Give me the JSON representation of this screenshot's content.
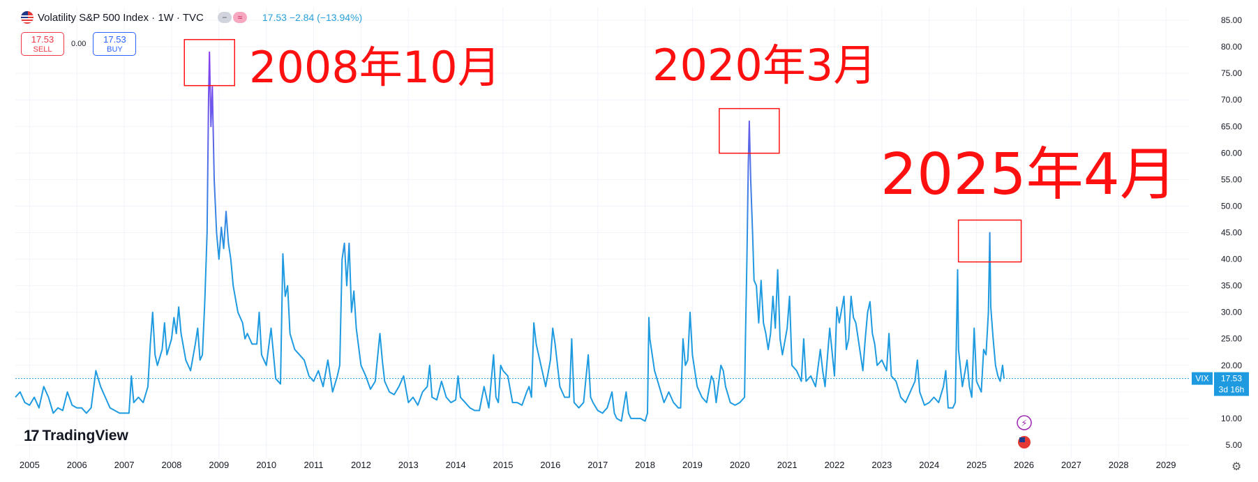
{
  "header": {
    "title": "Volatility S&P 500 Index · 1W · TVC",
    "price": "17.53",
    "change": "−2.84 (−13.94%)"
  },
  "trade": {
    "sell_price": "17.53",
    "sell_label": "SELL",
    "spread": "0.00",
    "buy_price": "17.53",
    "buy_label": "BUY"
  },
  "logo_text": "TradingView",
  "price_tag": {
    "symbol": "VIX",
    "value": "17.53",
    "countdown": "3d 16h"
  },
  "annotations": [
    {
      "text": "2008年10月",
      "date": 2008.8,
      "value": 79
    },
    {
      "text": "2020年3月",
      "date": 2020.2,
      "value": 66
    },
    {
      "text": "2025年4月",
      "date": 2025.28,
      "value": 45
    }
  ],
  "colors": {
    "line_low": "#1e9be0",
    "line_high": "#8b3cf0",
    "annotation": "#ff1010",
    "price_tag": "#1e9be0"
  },
  "chart_data": {
    "type": "line",
    "title": "Volatility S&P 500 Index · 1W · TVC",
    "series": [
      {
        "name": "VIX",
        "points": [
          [
            2004.7,
            14
          ],
          [
            2004.8,
            15
          ],
          [
            2004.9,
            13
          ],
          [
            2005.0,
            12.5
          ],
          [
            2005.1,
            14
          ],
          [
            2005.2,
            12
          ],
          [
            2005.3,
            16
          ],
          [
            2005.4,
            14
          ],
          [
            2005.5,
            11
          ],
          [
            2005.6,
            12
          ],
          [
            2005.7,
            11.5
          ],
          [
            2005.8,
            15
          ],
          [
            2005.9,
            12.5
          ],
          [
            2006.0,
            12
          ],
          [
            2006.1,
            12
          ],
          [
            2006.2,
            11
          ],
          [
            2006.3,
            12
          ],
          [
            2006.4,
            19
          ],
          [
            2006.5,
            16
          ],
          [
            2006.6,
            14
          ],
          [
            2006.7,
            12
          ],
          [
            2006.8,
            11.5
          ],
          [
            2006.9,
            11
          ],
          [
            2007.0,
            11
          ],
          [
            2007.1,
            11
          ],
          [
            2007.15,
            18
          ],
          [
            2007.2,
            13
          ],
          [
            2007.3,
            14
          ],
          [
            2007.4,
            13
          ],
          [
            2007.5,
            16
          ],
          [
            2007.55,
            24
          ],
          [
            2007.6,
            30
          ],
          [
            2007.65,
            22
          ],
          [
            2007.7,
            20
          ],
          [
            2007.8,
            23
          ],
          [
            2007.85,
            28
          ],
          [
            2007.9,
            22
          ],
          [
            2008.0,
            25
          ],
          [
            2008.05,
            29
          ],
          [
            2008.1,
            26
          ],
          [
            2008.15,
            31
          ],
          [
            2008.2,
            26
          ],
          [
            2008.3,
            21
          ],
          [
            2008.4,
            19
          ],
          [
            2008.5,
            24
          ],
          [
            2008.55,
            27
          ],
          [
            2008.6,
            21
          ],
          [
            2008.65,
            22
          ],
          [
            2008.7,
            32
          ],
          [
            2008.75,
            45
          ],
          [
            2008.78,
            70
          ],
          [
            2008.8,
            79
          ],
          [
            2008.83,
            65
          ],
          [
            2008.86,
            72.5
          ],
          [
            2008.9,
            55
          ],
          [
            2008.95,
            45
          ],
          [
            2009.0,
            40
          ],
          [
            2009.05,
            46
          ],
          [
            2009.1,
            42
          ],
          [
            2009.15,
            49
          ],
          [
            2009.2,
            43
          ],
          [
            2009.25,
            40
          ],
          [
            2009.3,
            35
          ],
          [
            2009.4,
            30
          ],
          [
            2009.5,
            28
          ],
          [
            2009.55,
            25
          ],
          [
            2009.6,
            26
          ],
          [
            2009.7,
            24
          ],
          [
            2009.8,
            24
          ],
          [
            2009.85,
            30
          ],
          [
            2009.9,
            22
          ],
          [
            2010.0,
            20
          ],
          [
            2010.1,
            27
          ],
          [
            2010.2,
            17.5
          ],
          [
            2010.3,
            16.5
          ],
          [
            2010.35,
            41
          ],
          [
            2010.4,
            33
          ],
          [
            2010.45,
            35
          ],
          [
            2010.5,
            26
          ],
          [
            2010.6,
            23
          ],
          [
            2010.7,
            22
          ],
          [
            2010.8,
            21
          ],
          [
            2010.9,
            18
          ],
          [
            2011.0,
            17
          ],
          [
            2011.1,
            19
          ],
          [
            2011.2,
            16
          ],
          [
            2011.3,
            21
          ],
          [
            2011.4,
            15
          ],
          [
            2011.5,
            18
          ],
          [
            2011.55,
            20
          ],
          [
            2011.6,
            40
          ],
          [
            2011.65,
            43
          ],
          [
            2011.7,
            35
          ],
          [
            2011.75,
            43
          ],
          [
            2011.8,
            30
          ],
          [
            2011.85,
            34
          ],
          [
            2011.9,
            27
          ],
          [
            2012.0,
            20
          ],
          [
            2012.1,
            18
          ],
          [
            2012.2,
            15.5
          ],
          [
            2012.3,
            17
          ],
          [
            2012.4,
            26
          ],
          [
            2012.45,
            21
          ],
          [
            2012.5,
            17
          ],
          [
            2012.6,
            15
          ],
          [
            2012.7,
            14.5
          ],
          [
            2012.8,
            16
          ],
          [
            2012.9,
            18
          ],
          [
            2013.0,
            13
          ],
          [
            2013.1,
            14
          ],
          [
            2013.2,
            12.5
          ],
          [
            2013.3,
            15
          ],
          [
            2013.4,
            16
          ],
          [
            2013.45,
            20
          ],
          [
            2013.5,
            14
          ],
          [
            2013.6,
            13.5
          ],
          [
            2013.7,
            17
          ],
          [
            2013.8,
            14
          ],
          [
            2013.9,
            13
          ],
          [
            2014.0,
            13.5
          ],
          [
            2014.05,
            18
          ],
          [
            2014.1,
            14
          ],
          [
            2014.2,
            13
          ],
          [
            2014.3,
            12
          ],
          [
            2014.4,
            11.5
          ],
          [
            2014.5,
            11.5
          ],
          [
            2014.6,
            16
          ],
          [
            2014.7,
            12
          ],
          [
            2014.8,
            22
          ],
          [
            2014.85,
            14
          ],
          [
            2014.9,
            13
          ],
          [
            2014.95,
            20
          ],
          [
            2015.0,
            19
          ],
          [
            2015.1,
            18
          ],
          [
            2015.2,
            13
          ],
          [
            2015.3,
            13
          ],
          [
            2015.4,
            12.5
          ],
          [
            2015.5,
            15
          ],
          [
            2015.55,
            16
          ],
          [
            2015.6,
            14
          ],
          [
            2015.65,
            28
          ],
          [
            2015.7,
            24
          ],
          [
            2015.8,
            20
          ],
          [
            2015.9,
            16
          ],
          [
            2016.0,
            21
          ],
          [
            2016.05,
            27
          ],
          [
            2016.1,
            24
          ],
          [
            2016.2,
            16
          ],
          [
            2016.3,
            14
          ],
          [
            2016.4,
            14
          ],
          [
            2016.45,
            25
          ],
          [
            2016.5,
            13
          ],
          [
            2016.6,
            12
          ],
          [
            2016.7,
            13
          ],
          [
            2016.8,
            22
          ],
          [
            2016.85,
            14
          ],
          [
            2016.9,
            13
          ],
          [
            2017.0,
            11.5
          ],
          [
            2017.1,
            11
          ],
          [
            2017.2,
            12
          ],
          [
            2017.3,
            15
          ],
          [
            2017.35,
            11
          ],
          [
            2017.4,
            10
          ],
          [
            2017.5,
            9.5
          ],
          [
            2017.6,
            15
          ],
          [
            2017.65,
            11
          ],
          [
            2017.7,
            10
          ],
          [
            2017.8,
            10
          ],
          [
            2017.9,
            10
          ],
          [
            2018.0,
            9.5
          ],
          [
            2018.05,
            11
          ],
          [
            2018.08,
            29
          ],
          [
            2018.1,
            25
          ],
          [
            2018.2,
            19
          ],
          [
            2018.3,
            16
          ],
          [
            2018.4,
            13
          ],
          [
            2018.5,
            15
          ],
          [
            2018.6,
            13
          ],
          [
            2018.7,
            12
          ],
          [
            2018.75,
            12
          ],
          [
            2018.8,
            25
          ],
          [
            2018.85,
            20
          ],
          [
            2018.9,
            21
          ],
          [
            2018.95,
            30
          ],
          [
            2019.0,
            22
          ],
          [
            2019.1,
            16
          ],
          [
            2019.2,
            14
          ],
          [
            2019.3,
            13
          ],
          [
            2019.4,
            18
          ],
          [
            2019.45,
            17
          ],
          [
            2019.5,
            13
          ],
          [
            2019.6,
            20
          ],
          [
            2019.65,
            19
          ],
          [
            2019.7,
            16
          ],
          [
            2019.8,
            13
          ],
          [
            2019.9,
            12.5
          ],
          [
            2020.0,
            13
          ],
          [
            2020.1,
            14
          ],
          [
            2020.12,
            25
          ],
          [
            2020.15,
            40
          ],
          [
            2020.18,
            58
          ],
          [
            2020.2,
            66
          ],
          [
            2020.23,
            55
          ],
          [
            2020.27,
            45
          ],
          [
            2020.3,
            36
          ],
          [
            2020.35,
            35
          ],
          [
            2020.4,
            28
          ],
          [
            2020.45,
            36
          ],
          [
            2020.5,
            28
          ],
          [
            2020.55,
            26
          ],
          [
            2020.6,
            23
          ],
          [
            2020.65,
            26
          ],
          [
            2020.7,
            33
          ],
          [
            2020.75,
            27
          ],
          [
            2020.8,
            38
          ],
          [
            2020.85,
            25
          ],
          [
            2020.9,
            22
          ],
          [
            2021.0,
            27
          ],
          [
            2021.05,
            33
          ],
          [
            2021.1,
            20
          ],
          [
            2021.2,
            19
          ],
          [
            2021.3,
            17
          ],
          [
            2021.35,
            25
          ],
          [
            2021.4,
            17
          ],
          [
            2021.5,
            18
          ],
          [
            2021.6,
            16
          ],
          [
            2021.7,
            23
          ],
          [
            2021.75,
            19
          ],
          [
            2021.8,
            16
          ],
          [
            2021.9,
            27
          ],
          [
            2022.0,
            18
          ],
          [
            2022.05,
            31
          ],
          [
            2022.1,
            28
          ],
          [
            2022.2,
            33
          ],
          [
            2022.25,
            23
          ],
          [
            2022.3,
            25
          ],
          [
            2022.35,
            33
          ],
          [
            2022.4,
            29
          ],
          [
            2022.45,
            28
          ],
          [
            2022.5,
            25
          ],
          [
            2022.6,
            19
          ],
          [
            2022.65,
            25
          ],
          [
            2022.7,
            30
          ],
          [
            2022.75,
            32
          ],
          [
            2022.8,
            26
          ],
          [
            2022.85,
            24
          ],
          [
            2022.9,
            20
          ],
          [
            2023.0,
            21
          ],
          [
            2023.1,
            19
          ],
          [
            2023.15,
            26
          ],
          [
            2023.2,
            18
          ],
          [
            2023.3,
            17
          ],
          [
            2023.4,
            14
          ],
          [
            2023.5,
            13
          ],
          [
            2023.6,
            15
          ],
          [
            2023.7,
            17
          ],
          [
            2023.75,
            21
          ],
          [
            2023.8,
            15
          ],
          [
            2023.9,
            12.5
          ],
          [
            2024.0,
            13
          ],
          [
            2024.1,
            14
          ],
          [
            2024.2,
            13
          ],
          [
            2024.3,
            16
          ],
          [
            2024.35,
            19
          ],
          [
            2024.4,
            12
          ],
          [
            2024.5,
            12
          ],
          [
            2024.55,
            13
          ],
          [
            2024.6,
            38
          ],
          [
            2024.62,
            23
          ],
          [
            2024.7,
            16
          ],
          [
            2024.8,
            21
          ],
          [
            2024.85,
            16
          ],
          [
            2024.9,
            14
          ],
          [
            2024.95,
            27
          ],
          [
            2025.0,
            17
          ],
          [
            2025.1,
            15
          ],
          [
            2025.15,
            23
          ],
          [
            2025.2,
            22
          ],
          [
            2025.25,
            30
          ],
          [
            2025.28,
            45
          ],
          [
            2025.3,
            31
          ],
          [
            2025.35,
            25
          ],
          [
            2025.4,
            20
          ],
          [
            2025.45,
            18
          ],
          [
            2025.5,
            17
          ],
          [
            2025.55,
            20
          ],
          [
            2025.58,
            17.53
          ]
        ]
      }
    ],
    "xlim": [
      2004.7,
      2029.5
    ],
    "x_ticks": [
      "2005",
      "2006",
      "2007",
      "2008",
      "2009",
      "2010",
      "2011",
      "2012",
      "2013",
      "2014",
      "2015",
      "2016",
      "2017",
      "2018",
      "2019",
      "2020",
      "2021",
      "2022",
      "2023",
      "2024",
      "2025",
      "2026",
      "2027",
      "2028",
      "2029"
    ],
    "ylim": [
      2.5,
      87.5
    ],
    "y_ticks": [
      "5.00",
      "10.00",
      "15.00",
      "20.00",
      "25.00",
      "30.00",
      "35.00",
      "40.00",
      "45.00",
      "50.00",
      "55.00",
      "60.00",
      "65.00",
      "70.00",
      "75.00",
      "80.00",
      "85.00"
    ],
    "last_value": 17.53,
    "grid": true
  }
}
